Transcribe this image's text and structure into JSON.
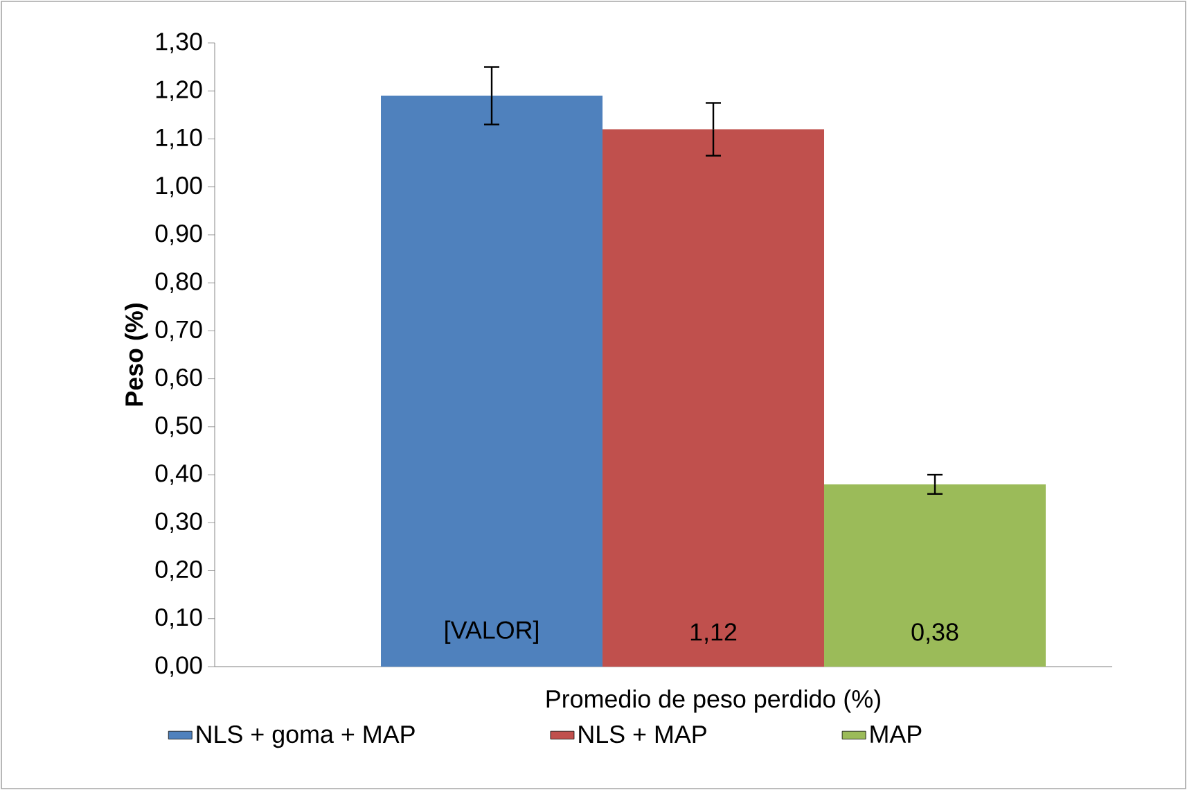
{
  "chart_data": {
    "type": "bar",
    "ylabel": "Peso (%)",
    "categories": [
      "Promedio de peso perdido (%)"
    ],
    "series": [
      {
        "name": "NLS + goma + MAP",
        "color": "#4f81bd",
        "values": [
          1.19
        ],
        "errors": [
          0.06
        ],
        "value_labels": [
          "[VALOR]"
        ]
      },
      {
        "name": "NLS + MAP",
        "color": "#c0504d",
        "values": [
          1.12
        ],
        "errors": [
          0.055
        ],
        "value_labels": [
          "1,12"
        ]
      },
      {
        "name": "MAP",
        "color": "#9bbb59",
        "values": [
          0.38
        ],
        "errors": [
          0.02
        ],
        "value_labels": [
          "0,38"
        ]
      }
    ],
    "ylim": [
      0,
      1.3
    ],
    "yticks": [
      {
        "value": 0,
        "label": "0,00"
      },
      {
        "value": 0.1,
        "label": "0,10"
      },
      {
        "value": 0.2,
        "label": "0,20"
      },
      {
        "value": 0.3,
        "label": "0,30"
      },
      {
        "value": 0.4,
        "label": "0,40"
      },
      {
        "value": 0.5,
        "label": "0,50"
      },
      {
        "value": 0.6,
        "label": "0,60"
      },
      {
        "value": 0.7,
        "label": "0,70"
      },
      {
        "value": 0.8,
        "label": "0,80"
      },
      {
        "value": 0.9,
        "label": "0,90"
      },
      {
        "value": 1.0,
        "label": "1,00"
      },
      {
        "value": 1.1,
        "label": "1,10"
      },
      {
        "value": 1.2,
        "label": "1,20"
      },
      {
        "value": 1.3,
        "label": "1,30"
      }
    ],
    "grid": false,
    "legend": "bottom"
  }
}
